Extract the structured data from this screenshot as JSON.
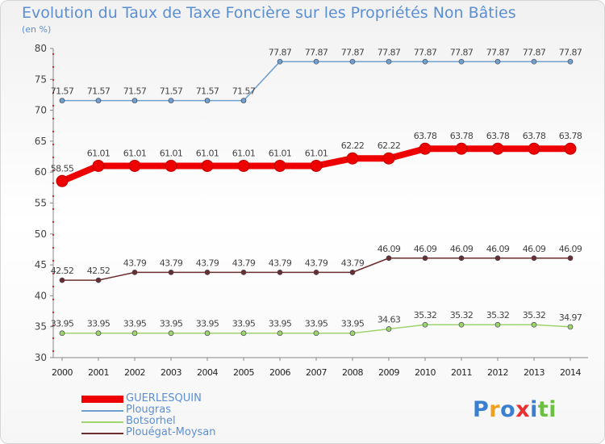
{
  "chart_data": {
    "type": "line",
    "title": "Evolution du Taux de Taxe Foncière sur les Propriétés Non Bâties",
    "subtitle": "(en %)",
    "x": [
      "2000",
      "2001",
      "2002",
      "2003",
      "2004",
      "2005",
      "2006",
      "2007",
      "2008",
      "2009",
      "2010",
      "2011",
      "2012",
      "2013",
      "2014"
    ],
    "ylim": [
      30,
      80
    ],
    "yticks": [
      30,
      35,
      40,
      45,
      50,
      55,
      60,
      65,
      70,
      75,
      80
    ],
    "grid": false,
    "legend_position": "bottom-left",
    "series": [
      {
        "name": "GUERLESQUIN",
        "color": "#ee0000",
        "emphasis": true,
        "values": [
          58.55,
          61.01,
          61.01,
          61.01,
          61.01,
          61.01,
          61.01,
          61.01,
          62.22,
          62.22,
          63.78,
          63.78,
          63.78,
          63.78,
          63.78
        ],
        "labels": [
          "58.55",
          "61.01",
          "61.01",
          "61.01",
          "61.01",
          "61.01",
          "61.01",
          "61.01",
          "62.22",
          "62.22",
          "63.78",
          "63.78",
          "63.78",
          "63.78",
          "63.78"
        ]
      },
      {
        "name": "Plougras",
        "color": "#6fa1cf",
        "emphasis": false,
        "values": [
          71.57,
          71.57,
          71.57,
          71.57,
          71.57,
          71.57,
          77.87,
          77.87,
          77.87,
          77.87,
          77.87,
          77.87,
          77.87,
          77.87,
          77.87
        ],
        "labels": [
          "71.57",
          "71.57",
          "71.57",
          "71.57",
          "71.57",
          "71.57",
          "77.87",
          "77.87",
          "77.87",
          "77.87",
          "77.87",
          "77.87",
          "77.87",
          "77.87",
          "77.87"
        ]
      },
      {
        "name": "Botsorhel",
        "color": "#9ed46c",
        "emphasis": false,
        "values": [
          33.95,
          33.95,
          33.95,
          33.95,
          33.95,
          33.95,
          33.95,
          33.95,
          33.95,
          34.63,
          35.32,
          35.32,
          35.32,
          35.32,
          34.97
        ],
        "labels": [
          "33.95",
          "33.95",
          "33.95",
          "33.95",
          "33.95",
          "33.95",
          "33.95",
          "33.95",
          "33.95",
          "34.63",
          "35.32",
          "35.32",
          "35.32",
          "35.32",
          "34.97"
        ]
      },
      {
        "name": "Plouégat-Moysan",
        "color": "#6b2e2e",
        "emphasis": false,
        "values": [
          42.52,
          42.52,
          43.79,
          43.79,
          43.79,
          43.79,
          43.79,
          43.79,
          43.79,
          46.09,
          46.09,
          46.09,
          46.09,
          46.09,
          46.09
        ],
        "labels": [
          "42.52",
          "42.52",
          "43.79",
          "43.79",
          "43.79",
          "43.79",
          "43.79",
          "43.79",
          "43.79",
          "46.09",
          "46.09",
          "46.09",
          "46.09",
          "46.09",
          "46.09"
        ]
      }
    ]
  },
  "logo": {
    "letters": [
      "P",
      "r",
      "o",
      "x",
      "i",
      "t",
      "i"
    ],
    "colors": [
      "#3a7fd0",
      "#f0a020",
      "#3a7fd0",
      "#e83030",
      "#3a7fd0",
      "#6cc040",
      "#6cc040"
    ]
  }
}
